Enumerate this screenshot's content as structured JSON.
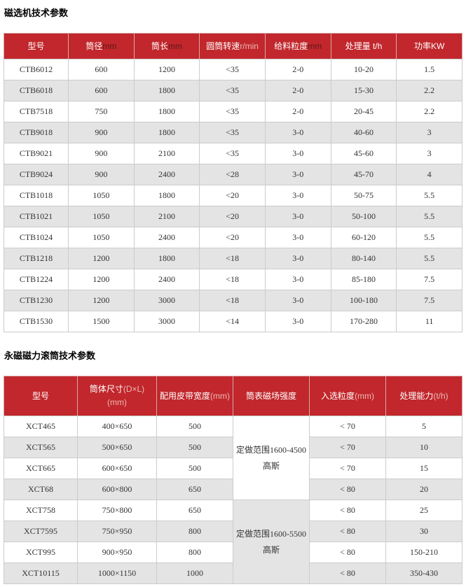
{
  "colors": {
    "header_bg": "#c1272c",
    "header_text": "#ffffff",
    "header_latin_dark": "#5d1716",
    "header_latin_light": "#edb8b3",
    "row_bg": "#ffffff",
    "row_alt_bg": "#e4e4e4",
    "border": "#cccccc",
    "cell_text": "#333333"
  },
  "section1": {
    "title": "磁选机技术参数",
    "table": {
      "headers": [
        {
          "lines": [
            [
              {
                "t": "型号",
                "c": "header_text"
              }
            ]
          ]
        },
        {
          "lines": [
            [
              {
                "t": "筒径",
                "c": "header_text"
              },
              {
                "t": "mm",
                "c": "header_latin_dark"
              }
            ]
          ]
        },
        {
          "lines": [
            [
              {
                "t": "筒长",
                "c": "header_text"
              },
              {
                "t": "mm",
                "c": "header_latin_dark"
              }
            ]
          ]
        },
        {
          "lines": [
            [
              {
                "t": "圆筒转速",
                "c": "header_text"
              },
              {
                "t": "r/min",
                "c": "header_latin_light"
              }
            ]
          ]
        },
        {
          "lines": [
            [
              {
                "t": "给料粒度",
                "c": "header_text"
              },
              {
                "t": "mm",
                "c": "header_latin_dark"
              }
            ]
          ]
        },
        {
          "lines": [
            [
              {
                "t": "处理量 t/h",
                "c": "header_text"
              }
            ]
          ]
        },
        {
          "lines": [
            [
              {
                "t": "功率KW",
                "c": "header_text"
              }
            ]
          ]
        }
      ],
      "rows": [
        [
          "CTB6012",
          "600",
          "1200",
          "<35",
          "2-0",
          "10-20",
          "1.5"
        ],
        [
          "CTB6018",
          "600",
          "1800",
          "<35",
          "2-0",
          "15-30",
          "2.2"
        ],
        [
          "CTB7518",
          "750",
          "1800",
          "<35",
          "2-0",
          "20-45",
          "2.2"
        ],
        [
          "CTB9018",
          "900",
          "1800",
          "<35",
          "3-0",
          "40-60",
          "3"
        ],
        [
          "CTB9021",
          "900",
          "2100",
          "<35",
          "3-0",
          "45-60",
          "3"
        ],
        [
          "CTB9024",
          "900",
          "2400",
          "<28",
          "3-0",
          "45-70",
          "4"
        ],
        [
          "CTB1018",
          "1050",
          "1800",
          "<20",
          "3-0",
          "50-75",
          "5.5"
        ],
        [
          "CTB1021",
          "1050",
          "2100",
          "<20",
          "3-0",
          "50-100",
          "5.5"
        ],
        [
          "CTB1024",
          "1050",
          "2400",
          "<20",
          "3-0",
          "60-120",
          "5.5"
        ],
        [
          "CTB1218",
          "1200",
          "1800",
          "<18",
          "3-0",
          "80-140",
          "5.5"
        ],
        [
          "CTB1224",
          "1200",
          "2400",
          "<18",
          "3-0",
          "85-180",
          "7.5"
        ],
        [
          "CTB1230",
          "1200",
          "3000",
          "<18",
          "3-0",
          "100-180",
          "7.5"
        ],
        [
          "CTB1530",
          "1500",
          "3000",
          "<14",
          "3-0",
          "170-280",
          "11"
        ]
      ]
    }
  },
  "section2": {
    "title": "永磁磁力滚筒技术参数",
    "table": {
      "headers": [
        {
          "lines": [
            [
              {
                "t": "型号",
                "c": "header_text"
              }
            ]
          ]
        },
        {
          "lines": [
            [
              {
                "t": "筒体尺寸",
                "c": "header_text"
              },
              {
                "t": "(D×L)",
                "c": "header_latin_light"
              }
            ],
            [
              {
                "t": "(mm)",
                "c": "header_latin_light"
              }
            ]
          ]
        },
        {
          "lines": [
            [
              {
                "t": "配用皮带宽度",
                "c": "header_text"
              },
              {
                "t": "(mm)",
                "c": "header_latin_light"
              }
            ]
          ]
        },
        {
          "lines": [
            [
              {
                "t": "筒表磁场强度",
                "c": "header_text"
              }
            ]
          ]
        },
        {
          "lines": [
            [
              {
                "t": "入选粒度",
                "c": "header_text"
              },
              {
                "t": "(mm)",
                "c": "header_latin_light"
              }
            ]
          ]
        },
        {
          "lines": [
            [
              {
                "t": "处理能力",
                "c": "header_text"
              },
              {
                "t": "(t/h)",
                "c": "header_latin_light"
              }
            ]
          ]
        }
      ],
      "merged_col": 3,
      "merged": [
        {
          "start": 0,
          "span": 4,
          "line1": "定做范围1600-4500",
          "line2": "高斯",
          "bg": "#ffffff"
        },
        {
          "start": 4,
          "span": 4,
          "line1": "定做范围1600-5500",
          "line2": "高斯",
          "bg": "#e4e4e4"
        }
      ],
      "rows": [
        [
          "XCT465",
          "400×650",
          "500",
          "< 70",
          "5"
        ],
        [
          "XCT565",
          "500×650",
          "500",
          "< 70",
          "10"
        ],
        [
          "XCT665",
          "600×650",
          "500",
          "< 70",
          "15"
        ],
        [
          "XCT68",
          "600×800",
          "650",
          "< 80",
          "20"
        ],
        [
          "XCT758",
          "750×800",
          "650",
          "< 80",
          "25"
        ],
        [
          "XCT7595",
          "750×950",
          "800",
          "< 80",
          "30"
        ],
        [
          "XCT995",
          "900×950",
          "800",
          "< 80",
          "150-210"
        ],
        [
          "XCT10115",
          "1000×1150",
          "1000",
          "< 80",
          "350-430"
        ]
      ]
    }
  }
}
